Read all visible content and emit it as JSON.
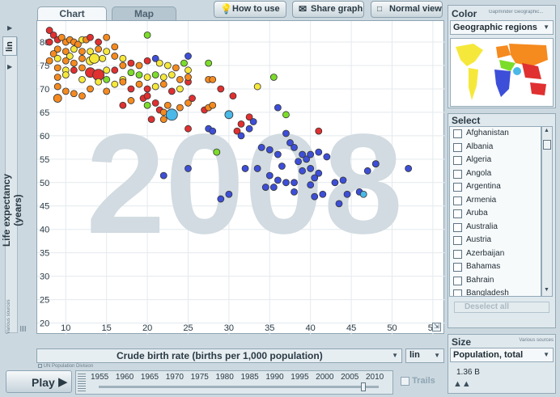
{
  "tabs": [
    {
      "label": "Chart"
    },
    {
      "label": "Map"
    }
  ],
  "toolbar": {
    "how_to_use": "How to use",
    "share_graph": "Share graph",
    "normal_view": "Normal view"
  },
  "chart": {
    "year_watermark": "2008",
    "y_axis_label": "Life expectancy (years)",
    "y_scale": "lin",
    "y_source": "Various sources",
    "x_axis_label": "Crude birth rate (births per 1,000 population)",
    "x_scale": "lin",
    "x_source": "UN Population Division"
  },
  "chart_data": {
    "type": "scatter",
    "xlabel": "Crude birth rate (births per 1,000 population)",
    "ylabel": "Life expectancy (years)",
    "xlim": [
      6.5,
      56.5
    ],
    "ylim": [
      17.5,
      84.5
    ],
    "xticks": [
      10,
      15,
      20,
      25,
      30,
      35,
      40,
      45,
      50,
      55
    ],
    "yticks": [
      20,
      25,
      30,
      35,
      40,
      45,
      50,
      55,
      60,
      65,
      70,
      75,
      80
    ],
    "grid": true,
    "colors": {
      "red": "#e03030",
      "orange": "#f58a1f",
      "yellow": "#f6e83a",
      "green": "#7cdc2a",
      "cyan": "#4ab8e8",
      "blue": "#3d4fd8"
    },
    "points": [
      {
        "x": 8,
        "y": 82.5,
        "c": "red",
        "s": 4
      },
      {
        "x": 8.5,
        "y": 81.5,
        "c": "red",
        "s": 4
      },
      {
        "x": 9,
        "y": 80.5,
        "c": "red",
        "s": 4
      },
      {
        "x": 8,
        "y": 80,
        "c": "red",
        "s": 4
      },
      {
        "x": 9.5,
        "y": 81,
        "c": "orange",
        "s": 4
      },
      {
        "x": 10,
        "y": 80,
        "c": "orange",
        "s": 4
      },
      {
        "x": 10.5,
        "y": 80.5,
        "c": "orange",
        "s": 4
      },
      {
        "x": 11,
        "y": 80,
        "c": "orange",
        "s": 4
      },
      {
        "x": 11.5,
        "y": 79.5,
        "c": "orange",
        "s": 4
      },
      {
        "x": 12,
        "y": 80.5,
        "c": "yellow",
        "s": 4
      },
      {
        "x": 12.5,
        "y": 80.5,
        "c": "orange",
        "s": 4
      },
      {
        "x": 13,
        "y": 81,
        "c": "red",
        "s": 4
      },
      {
        "x": 14,
        "y": 80,
        "c": "red",
        "s": 4
      },
      {
        "x": 15,
        "y": 81,
        "c": "orange",
        "s": 4
      },
      {
        "x": 9,
        "y": 78.5,
        "c": "orange",
        "s": 4
      },
      {
        "x": 8.5,
        "y": 77.5,
        "c": "orange",
        "s": 4
      },
      {
        "x": 10,
        "y": 78,
        "c": "orange",
        "s": 4
      },
      {
        "x": 10.5,
        "y": 77,
        "c": "yellow",
        "s": 4
      },
      {
        "x": 11,
        "y": 78.5,
        "c": "yellow",
        "s": 4
      },
      {
        "x": 12,
        "y": 78,
        "c": "orange",
        "s": 4
      },
      {
        "x": 13,
        "y": 78,
        "c": "yellow",
        "s": 4
      },
      {
        "x": 14,
        "y": 78.5,
        "c": "orange",
        "s": 4
      },
      {
        "x": 15,
        "y": 78,
        "c": "yellow",
        "s": 4
      },
      {
        "x": 16,
        "y": 79,
        "c": "orange",
        "s": 4
      },
      {
        "x": 8,
        "y": 76,
        "c": "orange",
        "s": 4
      },
      {
        "x": 9,
        "y": 76.5,
        "c": "yellow",
        "s": 4
      },
      {
        "x": 10,
        "y": 76,
        "c": "orange",
        "s": 4
      },
      {
        "x": 11,
        "y": 75.5,
        "c": "orange",
        "s": 4
      },
      {
        "x": 12,
        "y": 76.5,
        "c": "orange",
        "s": 4
      },
      {
        "x": 13,
        "y": 76,
        "c": "yellow",
        "s": 5
      },
      {
        "x": 13.5,
        "y": 76.5,
        "c": "yellow",
        "s": 6
      },
      {
        "x": 14.5,
        "y": 76.5,
        "c": "yellow",
        "s": 4
      },
      {
        "x": 16,
        "y": 77,
        "c": "orange",
        "s": 4
      },
      {
        "x": 17,
        "y": 76.5,
        "c": "yellow",
        "s": 4
      },
      {
        "x": 9,
        "y": 74.5,
        "c": "orange",
        "s": 4
      },
      {
        "x": 10,
        "y": 74,
        "c": "yellow",
        "s": 4
      },
      {
        "x": 11,
        "y": 74,
        "c": "red",
        "s": 4
      },
      {
        "x": 12,
        "y": 74.5,
        "c": "orange",
        "s": 4
      },
      {
        "x": 13,
        "y": 73.5,
        "c": "red",
        "s": 6
      },
      {
        "x": 14,
        "y": 73,
        "c": "red",
        "s": 7
      },
      {
        "x": 15,
        "y": 74,
        "c": "yellow",
        "s": 4
      },
      {
        "x": 16,
        "y": 74,
        "c": "red",
        "s": 4
      },
      {
        "x": 17,
        "y": 75,
        "c": "orange",
        "s": 4
      },
      {
        "x": 18,
        "y": 75.5,
        "c": "red",
        "s": 4
      },
      {
        "x": 19,
        "y": 75,
        "c": "orange",
        "s": 4
      },
      {
        "x": 20,
        "y": 76,
        "c": "red",
        "s": 4
      },
      {
        "x": 21,
        "y": 76.5,
        "c": "blue",
        "s": 4
      },
      {
        "x": 9,
        "y": 72.5,
        "c": "orange",
        "s": 4
      },
      {
        "x": 10,
        "y": 73,
        "c": "yellow",
        "s": 4
      },
      {
        "x": 12,
        "y": 72,
        "c": "yellow",
        "s": 4
      },
      {
        "x": 14,
        "y": 71.5,
        "c": "yellow",
        "s": 4
      },
      {
        "x": 15,
        "y": 72,
        "c": "green",
        "s": 4
      },
      {
        "x": 16,
        "y": 71,
        "c": "yellow",
        "s": 4
      },
      {
        "x": 17,
        "y": 72,
        "c": "yellow",
        "s": 4
      },
      {
        "x": 18,
        "y": 73.5,
        "c": "green",
        "s": 4
      },
      {
        "x": 19,
        "y": 73,
        "c": "green",
        "s": 4
      },
      {
        "x": 20,
        "y": 72.5,
        "c": "yellow",
        "s": 4
      },
      {
        "x": 21,
        "y": 73,
        "c": "green",
        "s": 4
      },
      {
        "x": 22,
        "y": 72.5,
        "c": "yellow",
        "s": 4
      },
      {
        "x": 23,
        "y": 73,
        "c": "yellow",
        "s": 4
      },
      {
        "x": 24,
        "y": 72,
        "c": "orange",
        "s": 4
      },
      {
        "x": 25,
        "y": 74,
        "c": "yellow",
        "s": 4
      },
      {
        "x": 21.5,
        "y": 75.5,
        "c": "yellow",
        "s": 4
      },
      {
        "x": 22.5,
        "y": 75,
        "c": "yellow",
        "s": 4
      },
      {
        "x": 23.5,
        "y": 74.5,
        "c": "orange",
        "s": 4
      },
      {
        "x": 24.5,
        "y": 75.5,
        "c": "green",
        "s": 4
      },
      {
        "x": 25,
        "y": 77,
        "c": "blue",
        "s": 4
      },
      {
        "x": 27.5,
        "y": 75.5,
        "c": "green",
        "s": 4
      },
      {
        "x": 20,
        "y": 81.5,
        "c": "green",
        "s": 4
      },
      {
        "x": 9,
        "y": 70.5,
        "c": "orange",
        "s": 4
      },
      {
        "x": 9,
        "y": 68,
        "c": "orange",
        "s": 5
      },
      {
        "x": 10,
        "y": 69.5,
        "c": "orange",
        "s": 4
      },
      {
        "x": 11,
        "y": 69,
        "c": "orange",
        "s": 4
      },
      {
        "x": 12,
        "y": 68.5,
        "c": "orange",
        "s": 4
      },
      {
        "x": 13,
        "y": 70,
        "c": "orange",
        "s": 4
      },
      {
        "x": 15,
        "y": 69.5,
        "c": "orange",
        "s": 4
      },
      {
        "x": 17,
        "y": 71.5,
        "c": "orange",
        "s": 4
      },
      {
        "x": 18,
        "y": 70,
        "c": "red",
        "s": 4
      },
      {
        "x": 19,
        "y": 71,
        "c": "orange",
        "s": 4
      },
      {
        "x": 20,
        "y": 70,
        "c": "red",
        "s": 4
      },
      {
        "x": 21,
        "y": 70.5,
        "c": "yellow",
        "s": 4
      },
      {
        "x": 22,
        "y": 71,
        "c": "orange",
        "s": 4
      },
      {
        "x": 23,
        "y": 69.5,
        "c": "red",
        "s": 4
      },
      {
        "x": 24,
        "y": 70,
        "c": "yellow",
        "s": 4
      },
      {
        "x": 25,
        "y": 71.5,
        "c": "red",
        "s": 4
      },
      {
        "x": 25,
        "y": 72.5,
        "c": "orange",
        "s": 4
      },
      {
        "x": 27.5,
        "y": 72,
        "c": "orange",
        "s": 4
      },
      {
        "x": 28,
        "y": 72,
        "c": "orange",
        "s": 4
      },
      {
        "x": 19.5,
        "y": 68,
        "c": "red",
        "s": 4
      },
      {
        "x": 20,
        "y": 68.5,
        "c": "red",
        "s": 4
      },
      {
        "x": 18,
        "y": 67.5,
        "c": "orange",
        "s": 4
      },
      {
        "x": 17,
        "y": 66.5,
        "c": "red",
        "s": 4
      },
      {
        "x": 20,
        "y": 66.5,
        "c": "green",
        "s": 4
      },
      {
        "x": 21,
        "y": 67,
        "c": "red",
        "s": 4
      },
      {
        "x": 21.5,
        "y": 65.5,
        "c": "red",
        "s": 4
      },
      {
        "x": 22,
        "y": 65,
        "c": "orange",
        "s": 4
      },
      {
        "x": 22.5,
        "y": 66.5,
        "c": "orange",
        "s": 4
      },
      {
        "x": 24,
        "y": 66,
        "c": "orange",
        "s": 4
      },
      {
        "x": 25,
        "y": 67,
        "c": "orange",
        "s": 4
      },
      {
        "x": 25.5,
        "y": 68,
        "c": "red",
        "s": 4
      },
      {
        "x": 27,
        "y": 65.5,
        "c": "red",
        "s": 4
      },
      {
        "x": 27.5,
        "y": 66,
        "c": "orange",
        "s": 4
      },
      {
        "x": 28,
        "y": 66.5,
        "c": "orange",
        "s": 4
      },
      {
        "x": 23,
        "y": 64.5,
        "c": "cyan",
        "s": 7
      },
      {
        "x": 22,
        "y": 63.5,
        "c": "orange",
        "s": 4
      },
      {
        "x": 20.5,
        "y": 63.5,
        "c": "red",
        "s": 4
      },
      {
        "x": 25,
        "y": 61.5,
        "c": "red",
        "s": 4
      },
      {
        "x": 29,
        "y": 70,
        "c": "red",
        "s": 4
      },
      {
        "x": 30.5,
        "y": 68.5,
        "c": "red",
        "s": 4
      },
      {
        "x": 30,
        "y": 64.5,
        "c": "cyan",
        "s": 5
      },
      {
        "x": 31.5,
        "y": 62.5,
        "c": "red",
        "s": 4
      },
      {
        "x": 32.5,
        "y": 64,
        "c": "red",
        "s": 4
      },
      {
        "x": 33,
        "y": 63,
        "c": "blue",
        "s": 4
      },
      {
        "x": 31,
        "y": 61,
        "c": "red",
        "s": 4
      },
      {
        "x": 31.5,
        "y": 60,
        "c": "blue",
        "s": 4
      },
      {
        "x": 32.5,
        "y": 61.5,
        "c": "blue",
        "s": 4
      },
      {
        "x": 33.5,
        "y": 70.5,
        "c": "yellow",
        "s": 4
      },
      {
        "x": 35.5,
        "y": 72.5,
        "c": "green",
        "s": 4
      },
      {
        "x": 36,
        "y": 66,
        "c": "blue",
        "s": 4
      },
      {
        "x": 37,
        "y": 64.5,
        "c": "green",
        "s": 4
      },
      {
        "x": 37,
        "y": 60.5,
        "c": "blue",
        "s": 4
      },
      {
        "x": 34,
        "y": 57.5,
        "c": "blue",
        "s": 4
      },
      {
        "x": 35,
        "y": 57,
        "c": "blue",
        "s": 4
      },
      {
        "x": 36,
        "y": 56,
        "c": "blue",
        "s": 4
      },
      {
        "x": 37.5,
        "y": 58.5,
        "c": "blue",
        "s": 4
      },
      {
        "x": 38,
        "y": 57.5,
        "c": "blue",
        "s": 4
      },
      {
        "x": 39,
        "y": 56,
        "c": "blue",
        "s": 4
      },
      {
        "x": 38.5,
        "y": 54.5,
        "c": "blue",
        "s": 4
      },
      {
        "x": 39.5,
        "y": 55,
        "c": "blue",
        "s": 4
      },
      {
        "x": 40,
        "y": 56,
        "c": "blue",
        "s": 4
      },
      {
        "x": 41,
        "y": 56.5,
        "c": "blue",
        "s": 4
      },
      {
        "x": 42,
        "y": 55.5,
        "c": "blue",
        "s": 4
      },
      {
        "x": 40,
        "y": 53,
        "c": "blue",
        "s": 4
      },
      {
        "x": 41,
        "y": 52,
        "c": "blue",
        "s": 4
      },
      {
        "x": 40.5,
        "y": 51,
        "c": "blue",
        "s": 4
      },
      {
        "x": 39,
        "y": 52.5,
        "c": "blue",
        "s": 4
      },
      {
        "x": 38,
        "y": 50,
        "c": "blue",
        "s": 4
      },
      {
        "x": 37,
        "y": 50,
        "c": "blue",
        "s": 4
      },
      {
        "x": 36,
        "y": 50.5,
        "c": "blue",
        "s": 4
      },
      {
        "x": 35,
        "y": 51.5,
        "c": "blue",
        "s": 4
      },
      {
        "x": 35.5,
        "y": 49,
        "c": "blue",
        "s": 4
      },
      {
        "x": 40,
        "y": 49.5,
        "c": "blue",
        "s": 4
      },
      {
        "x": 40.5,
        "y": 47,
        "c": "blue",
        "s": 4
      },
      {
        "x": 41.5,
        "y": 47.5,
        "c": "blue",
        "s": 4
      },
      {
        "x": 41,
        "y": 61,
        "c": "red",
        "s": 4
      },
      {
        "x": 43,
        "y": 50,
        "c": "blue",
        "s": 4
      },
      {
        "x": 44,
        "y": 50.5,
        "c": "blue",
        "s": 4
      },
      {
        "x": 44.5,
        "y": 47.5,
        "c": "blue",
        "s": 4
      },
      {
        "x": 46,
        "y": 48,
        "c": "blue",
        "s": 4
      },
      {
        "x": 46.5,
        "y": 47.5,
        "c": "cyan",
        "s": 4
      },
      {
        "x": 47,
        "y": 52.5,
        "c": "blue",
        "s": 4
      },
      {
        "x": 48,
        "y": 54,
        "c": "blue",
        "s": 4
      },
      {
        "x": 52,
        "y": 53,
        "c": "blue",
        "s": 4
      },
      {
        "x": 38,
        "y": 48,
        "c": "blue",
        "s": 4
      },
      {
        "x": 36.5,
        "y": 53.5,
        "c": "blue",
        "s": 4
      },
      {
        "x": 32,
        "y": 53,
        "c": "blue",
        "s": 4
      },
      {
        "x": 28.5,
        "y": 56.5,
        "c": "green",
        "s": 4
      },
      {
        "x": 27.5,
        "y": 61.5,
        "c": "blue",
        "s": 4
      },
      {
        "x": 28,
        "y": 61,
        "c": "blue",
        "s": 4
      },
      {
        "x": 25,
        "y": 53,
        "c": "blue",
        "s": 4
      },
      {
        "x": 22,
        "y": 51.5,
        "c": "blue",
        "s": 4
      },
      {
        "x": 30,
        "y": 47.5,
        "c": "blue",
        "s": 4
      },
      {
        "x": 29,
        "y": 46.5,
        "c": "blue",
        "s": 4
      },
      {
        "x": 34.5,
        "y": 49,
        "c": "blue",
        "s": 4
      },
      {
        "x": 33.5,
        "y": 53,
        "c": "blue",
        "s": 4
      },
      {
        "x": 43.5,
        "y": 45.5,
        "c": "blue",
        "s": 4
      },
      {
        "x": 48,
        "y": 54,
        "c": "blue",
        "s": 4
      }
    ]
  },
  "color_panel": {
    "title": "Color",
    "source": "Gapminder Geographic...",
    "selected": "Geographic regions"
  },
  "select_panel": {
    "title": "Select",
    "countries": [
      "Afghanistan",
      "Albania",
      "Algeria",
      "Angola",
      "Argentina",
      "Armenia",
      "Aruba",
      "Australia",
      "Austria",
      "Azerbaijan",
      "Bahamas",
      "Bahrain",
      "Bangladesh"
    ],
    "deselect_all": "Deselect all"
  },
  "size_panel": {
    "title": "Size",
    "source": "Various sources",
    "selected": "Population, total",
    "value": "1.36 B"
  },
  "timeline": {
    "play_label": "Play",
    "trails_label": "Trails",
    "years": [
      "1955",
      "1960",
      "1965",
      "1970",
      "1975",
      "1980",
      "1985",
      "1990",
      "1995",
      "2000",
      "2005",
      "2010"
    ],
    "current_fraction": 0.945
  }
}
